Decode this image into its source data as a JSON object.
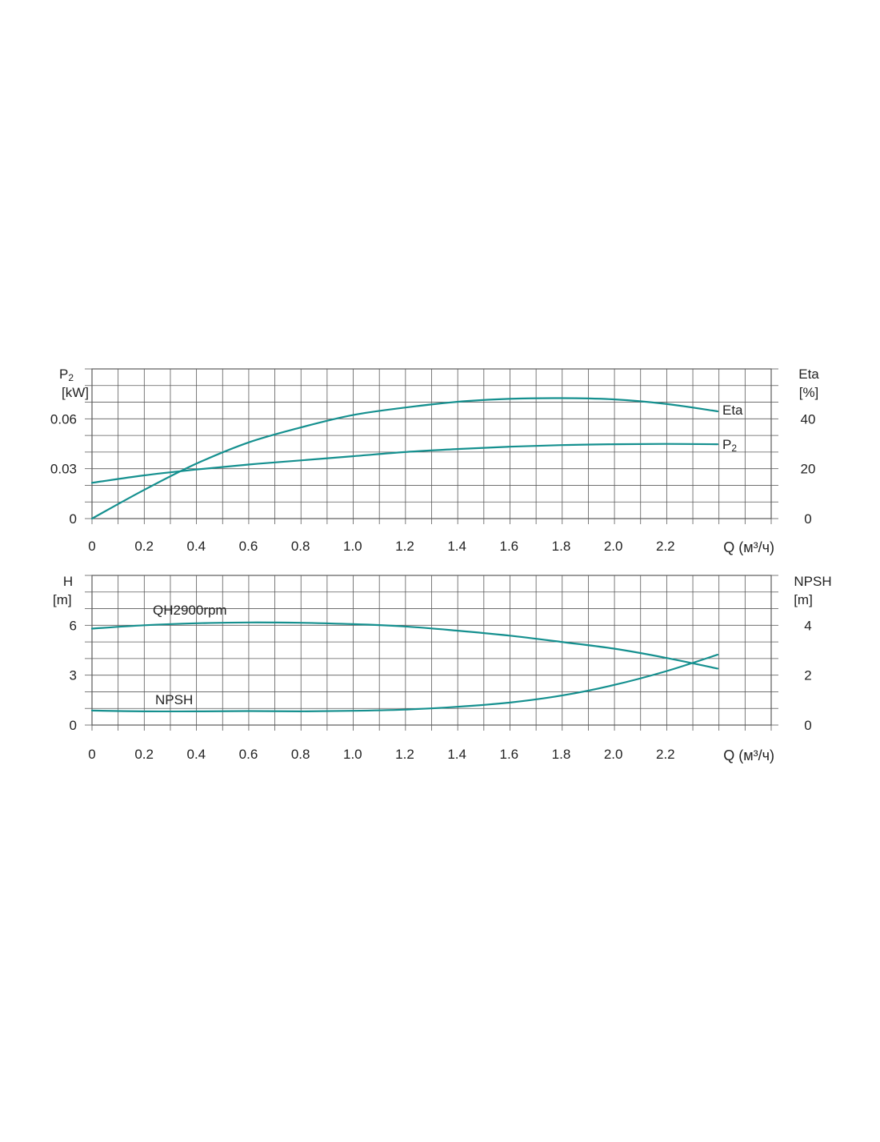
{
  "colors": {
    "curve": "#15908f",
    "grid": "#5a5a5a",
    "text": "#222222"
  },
  "chart_data": [
    {
      "type": "line",
      "x_label": "Q (м³/ч)",
      "x_ticks": [
        "0",
        "0.2",
        "0.4",
        "0.6",
        "0.8",
        "1.0",
        "1.2",
        "1.4",
        "1.6",
        "1.8",
        "2.0",
        "2.2"
      ],
      "xlim": [
        0,
        2.6
      ],
      "y_left": {
        "label_main": "P",
        "label_sub": "2",
        "unit": "[kW]",
        "ticks": [
          "0",
          "0.03",
          "0.06"
        ],
        "ylim": [
          0,
          0.09
        ]
      },
      "y_right": {
        "label": "Eta",
        "unit": "[%]",
        "ticks": [
          "0",
          "20",
          "40"
        ],
        "ylim": [
          0,
          60
        ]
      },
      "grid": true,
      "series": [
        {
          "name_main": "Eta",
          "name_sub": "",
          "axis": "right",
          "x": [
            0,
            0.2,
            0.4,
            0.6,
            0.8,
            1.0,
            1.2,
            1.4,
            1.6,
            1.8,
            2.0,
            2.2,
            2.4
          ],
          "y": [
            0,
            11.5,
            22,
            30.5,
            36.5,
            41.5,
            44.5,
            46.8,
            48,
            48.3,
            47.8,
            46,
            43
          ]
        },
        {
          "name_main": "P",
          "name_sub": "2",
          "axis": "left",
          "x": [
            0,
            0.2,
            0.4,
            0.6,
            0.8,
            1.0,
            1.2,
            1.4,
            1.6,
            1.8,
            2.0,
            2.2,
            2.4
          ],
          "y": [
            0.0215,
            0.026,
            0.0295,
            0.0325,
            0.035,
            0.0375,
            0.04,
            0.0418,
            0.0432,
            0.0442,
            0.0447,
            0.0449,
            0.0447
          ]
        }
      ]
    },
    {
      "type": "line",
      "x_label": "Q (м³/ч)",
      "x_ticks": [
        "0",
        "0.2",
        "0.4",
        "0.6",
        "0.8",
        "1.0",
        "1.2",
        "1.4",
        "1.6",
        "1.8",
        "2.0",
        "2.2"
      ],
      "xlim": [
        0,
        2.6
      ],
      "y_left": {
        "label_main": "H",
        "label_sub": "",
        "unit": "[m]",
        "ticks": [
          "0",
          "3",
          "6"
        ],
        "ylim": [
          0,
          9
        ]
      },
      "y_right": {
        "label": "NPSH",
        "unit": "[m]",
        "ticks": [
          "0",
          "2",
          "4"
        ],
        "ylim": [
          0,
          6
        ]
      },
      "grid": true,
      "series": [
        {
          "name_main": "QH2900rpm",
          "name_sub": "",
          "axis": "left",
          "x": [
            0,
            0.2,
            0.4,
            0.6,
            0.8,
            1.0,
            1.2,
            1.4,
            1.6,
            1.8,
            2.0,
            2.2,
            2.4
          ],
          "y": [
            5.8,
            6.0,
            6.12,
            6.17,
            6.15,
            6.07,
            5.93,
            5.68,
            5.38,
            5.0,
            4.6,
            4.05,
            3.4
          ]
        },
        {
          "name_main": "NPSH",
          "name_sub": "",
          "axis": "right",
          "x": [
            0,
            0.2,
            0.4,
            0.6,
            0.8,
            1.0,
            1.2,
            1.4,
            1.6,
            1.8,
            2.0,
            2.2,
            2.4
          ],
          "y": [
            0.58,
            0.55,
            0.55,
            0.56,
            0.55,
            0.57,
            0.62,
            0.73,
            0.9,
            1.18,
            1.6,
            2.15,
            2.82
          ]
        }
      ]
    }
  ]
}
